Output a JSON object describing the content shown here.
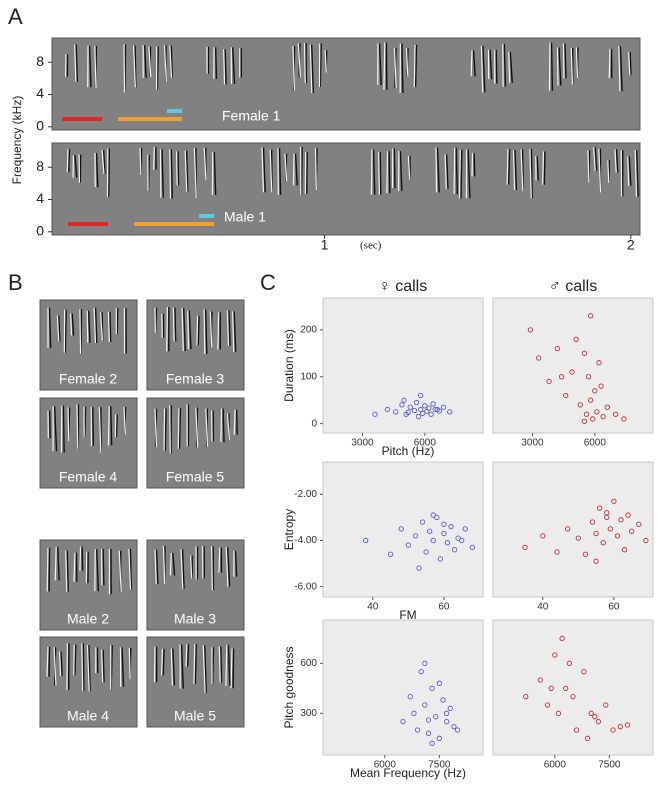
{
  "figure": {
    "panel_a": {
      "label": "A",
      "y_label": "Frequency (kHz)",
      "ylim": [
        -0.4,
        11
      ],
      "yticks": [
        0,
        4,
        8
      ],
      "xlim": [
        0.11,
        2.03
      ],
      "xticks": [
        1,
        2
      ],
      "x_unit": "(sec)",
      "tracks": [
        {
          "name": "Female 1"
        },
        {
          "name": "Male 1"
        }
      ]
    },
    "panel_b": {
      "label": "B",
      "thumbnails": [
        "Female 2",
        "Female 3",
        "Female 4",
        "Female 5",
        "Male 2",
        "Male 3",
        "Male 4",
        "Male 5"
      ]
    },
    "panel_c": {
      "label": "C"
    }
  },
  "chart_data": [
    {
      "type": "scatter",
      "title": "♀ calls",
      "x_label": "Pitch (Hz)",
      "y_label": "Duration (ms)",
      "color": "#5b5bc8",
      "xlim": [
        1100,
        8800
      ],
      "ylim": [
        -20,
        268
      ],
      "xticks": [
        3000,
        6000
      ],
      "yticks": [
        0,
        100,
        200
      ],
      "x": [
        4200,
        4600,
        4900,
        5100,
        5300,
        5500,
        5600,
        5800,
        5900,
        6000,
        6100,
        6200,
        6300,
        6500,
        6700,
        6900,
        7200,
        5000,
        5700,
        6400,
        5200,
        6600,
        3600,
        5800
      ],
      "y": [
        30,
        25,
        40,
        20,
        35,
        28,
        45,
        30,
        22,
        38,
        26,
        33,
        20,
        30,
        27,
        35,
        25,
        50,
        15,
        42,
        24,
        30,
        20,
        60
      ]
    },
    {
      "type": "scatter",
      "title": "♂ calls",
      "color": "#c03030",
      "xlim": [
        1100,
        8800
      ],
      "ylim": [
        -20,
        268
      ],
      "xticks": [
        3000,
        6000
      ],
      "x": [
        2900,
        3300,
        3800,
        4200,
        4600,
        4900,
        5100,
        5300,
        5500,
        5600,
        5700,
        5800,
        5900,
        6000,
        6100,
        6200,
        6400,
        6600,
        7000,
        7400,
        5500,
        5800,
        4400,
        6300
      ],
      "y": [
        200,
        140,
        90,
        160,
        60,
        110,
        180,
        40,
        150,
        20,
        100,
        230,
        10,
        70,
        25,
        130,
        15,
        35,
        20,
        10,
        5,
        50,
        100,
        80
      ]
    },
    {
      "type": "scatter",
      "x_label": "FM",
      "y_label": "Entropy",
      "color": "#5b5bc8",
      "xlim": [
        26,
        71
      ],
      "ylim": [
        -6.45,
        -0.6
      ],
      "xticks": [
        40,
        60
      ],
      "yticks": [
        {
          "value": -2,
          "label": "-2.00"
        },
        {
          "value": -4,
          "label": "-4.00"
        },
        {
          "value": -6,
          "label": "-6.00"
        }
      ],
      "x": [
        38,
        45,
        48,
        50,
        52,
        54,
        55,
        56,
        57,
        58,
        59,
        60,
        61,
        62,
        63,
        64,
        66,
        68,
        53,
        57,
        60,
        65
      ],
      "y": [
        -4.0,
        -4.6,
        -3.5,
        -4.2,
        -3.8,
        -3.2,
        -4.5,
        -3.6,
        -4.0,
        -3.0,
        -4.8,
        -3.7,
        -4.1,
        -3.4,
        -4.4,
        -3.9,
        -3.5,
        -4.3,
        -5.2,
        -2.9,
        -3.3,
        -4.0
      ]
    },
    {
      "type": "scatter",
      "color": "#c03030",
      "xlim": [
        26,
        71
      ],
      "ylim": [
        -6.45,
        -0.6
      ],
      "xticks": [
        40,
        60
      ],
      "x": [
        35,
        40,
        44,
        47,
        50,
        52,
        54,
        55,
        56,
        57,
        58,
        59,
        60,
        61,
        62,
        63,
        64,
        65,
        67,
        69,
        55,
        58
      ],
      "y": [
        -4.3,
        -3.8,
        -4.5,
        -3.5,
        -3.9,
        -4.6,
        -3.2,
        -3.7,
        -2.6,
        -4.1,
        -3.0,
        -3.5,
        -2.3,
        -3.8,
        -3.1,
        -4.4,
        -2.9,
        -3.6,
        -3.3,
        -4.0,
        -4.9,
        -2.8
      ]
    },
    {
      "type": "scatter",
      "x_label": "Mean Frequency (Hz)",
      "y_label": "Pitch goodness",
      "color": "#5b5bc8",
      "xlim": [
        4300,
        8700
      ],
      "ylim": [
        50,
        860
      ],
      "xticks": [
        6000,
        7500
      ],
      "yticks": [
        300,
        600
      ],
      "x": [
        6500,
        6700,
        6800,
        6900,
        7000,
        7100,
        7200,
        7300,
        7400,
        7500,
        7600,
        7700,
        7800,
        7900,
        8000,
        7100,
        7300,
        7500,
        7700,
        7200
      ],
      "y": [
        250,
        400,
        300,
        200,
        550,
        350,
        180,
        450,
        280,
        150,
        380,
        250,
        330,
        220,
        200,
        600,
        120,
        480,
        300,
        260
      ]
    },
    {
      "type": "scatter",
      "color": "#c03030",
      "xlim": [
        4300,
        8700
      ],
      "ylim": [
        50,
        860
      ],
      "xticks": [
        6000,
        7500
      ],
      "x": [
        5200,
        5600,
        5800,
        6000,
        6100,
        6200,
        6300,
        6500,
        6600,
        6800,
        7000,
        7200,
        7400,
        7600,
        7800,
        8000,
        6400,
        6900,
        5900,
        7100
      ],
      "y": [
        400,
        500,
        350,
        650,
        300,
        750,
        450,
        400,
        200,
        550,
        300,
        250,
        350,
        200,
        220,
        230,
        600,
        150,
        450,
        280
      ]
    }
  ]
}
